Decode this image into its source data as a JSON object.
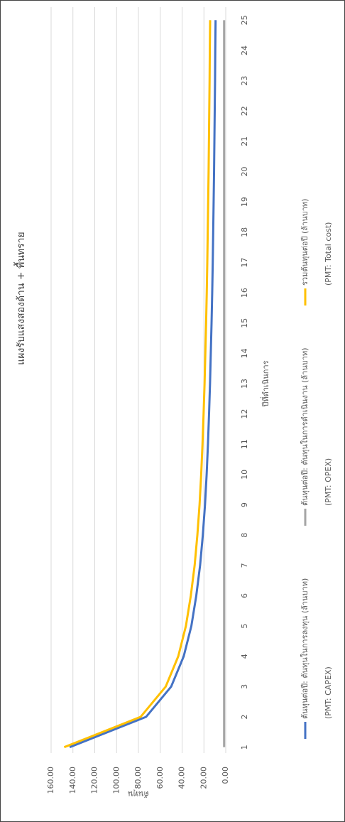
{
  "chart_data": {
    "type": "line",
    "title": "แผงรับแสงสองด้าน + พื้นทราย",
    "x_label": "ปีที่ดำเนินการ",
    "y_label": "ต้นทุน",
    "categories": [
      "1",
      "2",
      "3",
      "4",
      "5",
      "6",
      "7",
      "8",
      "9",
      "10",
      "11",
      "12",
      "13",
      "14",
      "15",
      "16",
      "17",
      "18",
      "19",
      "20",
      "21",
      "22",
      "23",
      "24",
      "25"
    ],
    "ylim": [
      0,
      160
    ],
    "yticks": [
      {
        "value": 0,
        "label": "0.00"
      },
      {
        "value": 20,
        "label": "20.00"
      },
      {
        "value": 40,
        "label": "40.00"
      },
      {
        "value": 60,
        "label": "60.00"
      },
      {
        "value": 80,
        "label": "80.00"
      },
      {
        "value": 100,
        "label": "100.00"
      },
      {
        "value": 120,
        "label": "120.00"
      },
      {
        "value": 140,
        "label": "140.00"
      },
      {
        "value": 160,
        "label": "160.00"
      }
    ],
    "grid": true,
    "legend_position": "bottom",
    "series": [
      {
        "name": "ต้นทุนต่อปี: ต้นทุนในการลงทุน (ล้านบาท)",
        "legend_note": "(PMT: CAPEX)",
        "color": "#4472c4",
        "values": [
          143,
          73,
          50,
          38.5,
          31.5,
          27,
          23.5,
          21,
          19,
          17.5,
          16.3,
          15.3,
          14.4,
          13.7,
          13,
          12.4,
          11.9,
          11.5,
          11.1,
          10.7,
          10.4,
          10.1,
          9.8,
          9.6,
          9.3
        ]
      },
      {
        "name": "ต้นทุนต่อปี: ต้นทุนในการดำเนินงาน (ล้านบาท)",
        "legend_note": "(PMT: OPEX)",
        "color": "#a5a5a5",
        "values": [
          1.5,
          1.5,
          1.5,
          1.5,
          1.5,
          1.5,
          1.5,
          1.5,
          1.5,
          1.5,
          1.5,
          1.5,
          1.5,
          1.5,
          1.5,
          1.5,
          1.5,
          1.5,
          1.5,
          1.5,
          1.5,
          1.5,
          1.5,
          1.5,
          1.5
        ]
      },
      {
        "name": "รวมต้นทุนต่อปี (ล้านบาท)",
        "legend_note": "(PMT: Total cost)",
        "color": "#ffc000",
        "values": [
          148,
          78,
          55,
          43.5,
          36.5,
          32,
          28.5,
          26,
          24,
          22.5,
          21.3,
          20.3,
          19.4,
          18.7,
          18,
          17.4,
          16.9,
          16.5,
          16.1,
          15.7,
          15.4,
          15.1,
          14.8,
          14.6,
          14.3
        ]
      }
    ]
  }
}
